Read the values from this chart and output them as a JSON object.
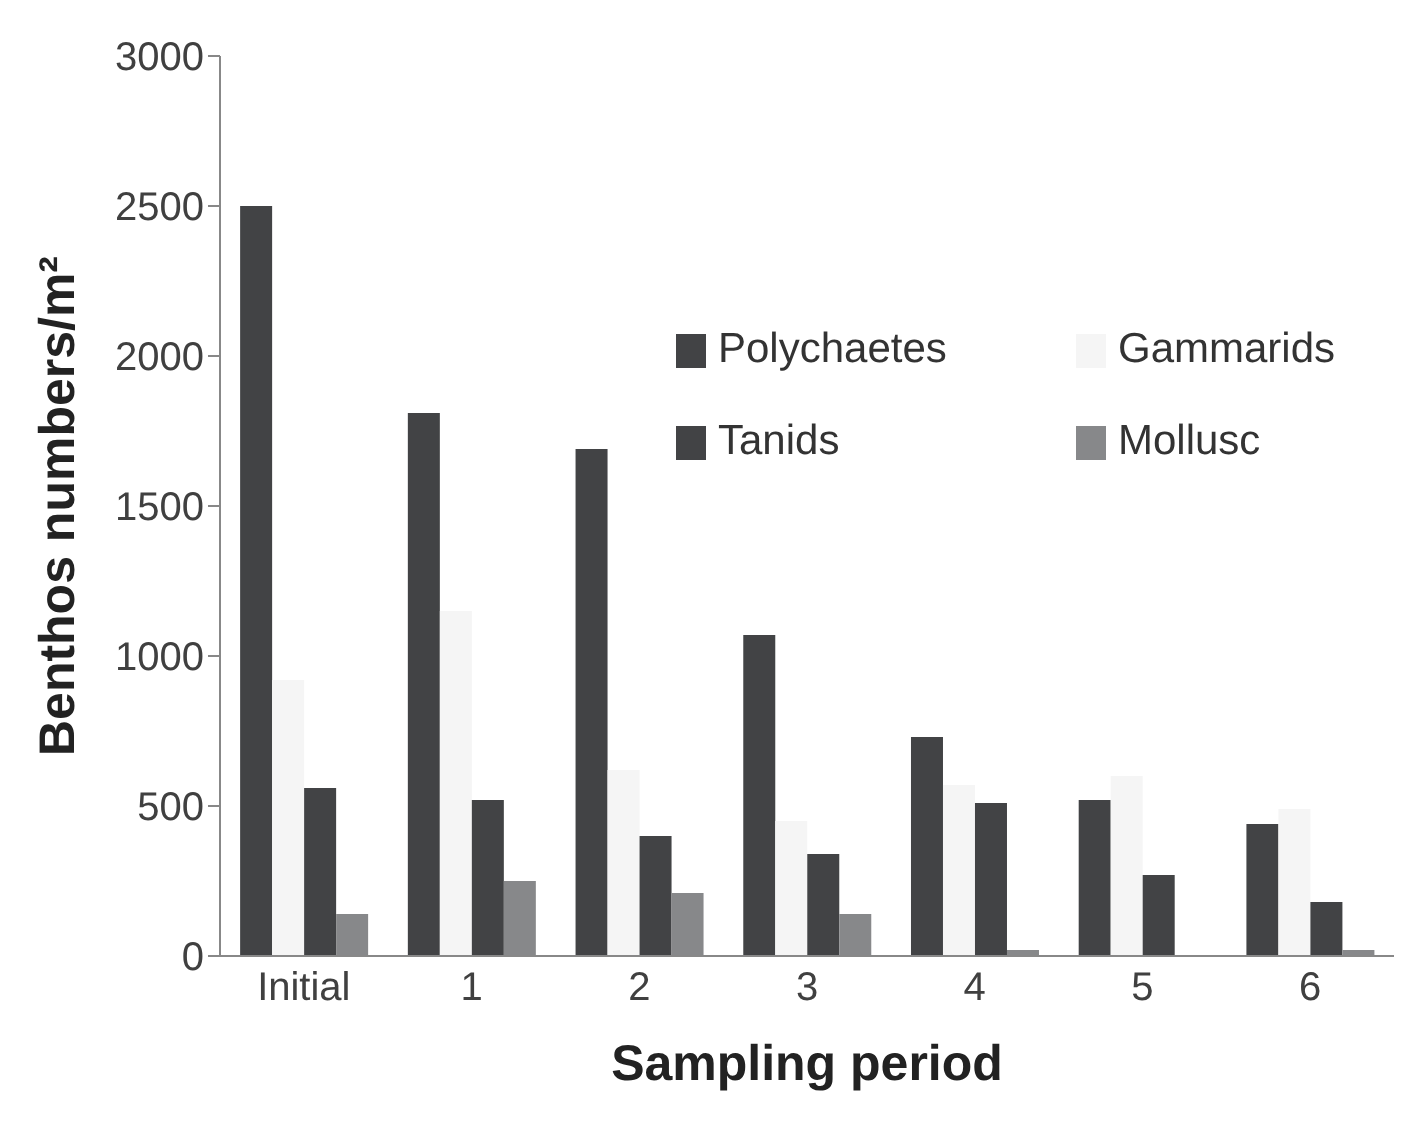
{
  "chart_data": {
    "type": "bar",
    "xlabel": "Sampling period",
    "ylabel": "Benthos numbers/m²",
    "categories": [
      "Initial",
      "1",
      "2",
      "3",
      "4",
      "5",
      "6"
    ],
    "series": [
      {
        "name": "Polychaetes",
        "color": "#424345",
        "values": [
          2500,
          1810,
          1690,
          1070,
          730,
          520,
          440
        ]
      },
      {
        "name": "Gammarids",
        "color": "#f5f5f5",
        "values": [
          920,
          1150,
          620,
          450,
          570,
          600,
          490
        ]
      },
      {
        "name": "Tanids",
        "color": "#424345",
        "values": [
          560,
          520,
          400,
          340,
          510,
          270,
          180
        ]
      },
      {
        "name": "Mollusc",
        "color": "#87888a",
        "values": [
          140,
          250,
          210,
          140,
          20,
          0,
          20
        ]
      }
    ],
    "ylim": [
      0,
      3000
    ],
    "yticks": [
      0,
      500,
      1000,
      1500,
      2000,
      2500,
      3000
    ],
    "grid": false,
    "legend": "top right"
  }
}
